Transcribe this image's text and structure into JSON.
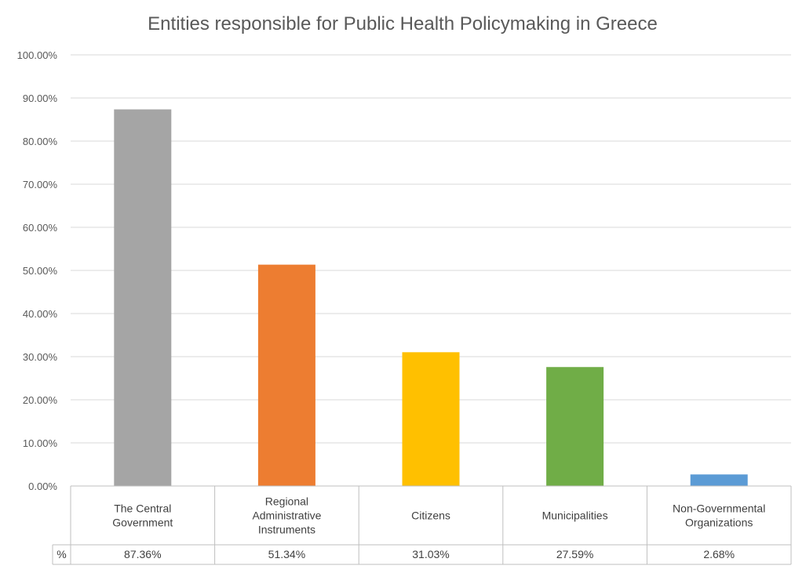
{
  "chart_data": {
    "type": "bar",
    "title": "Entities responsible for Public Health Policymaking in Greece",
    "categories": [
      [
        "The Central",
        "Government"
      ],
      [
        "Regional",
        "Administrative",
        "Instruments"
      ],
      [
        "Citizens"
      ],
      [
        "Municipalities"
      ],
      [
        "Non-Governmental",
        "Organizations"
      ]
    ],
    "values": [
      87.36,
      51.34,
      31.03,
      27.59,
      2.68
    ],
    "value_labels": [
      "87.36%",
      "51.34%",
      "31.03%",
      "27.59%",
      "2.68%"
    ],
    "colors": [
      "#a5a5a5",
      "#ed7d31",
      "#ffc000",
      "#70ad47",
      "#5b9bd5"
    ],
    "y_ticks": [
      "0.00%",
      "10.00%",
      "20.00%",
      "30.00%",
      "40.00%",
      "50.00%",
      "60.00%",
      "70.00%",
      "80.00%",
      "90.00%",
      "100.00%"
    ],
    "ylim": [
      0,
      100
    ],
    "grid": true,
    "data_table": {
      "row_label": "%"
    }
  }
}
